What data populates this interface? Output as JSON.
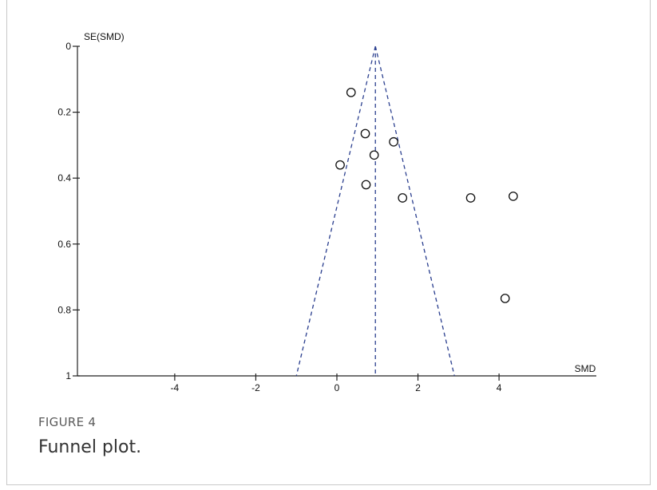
{
  "figure": {
    "label": "FIGURE 4",
    "caption": "Funnel plot."
  },
  "chart_data": {
    "type": "scatter",
    "subtype": "funnel",
    "xlabel": "SMD",
    "ylabel": "SE(SMD)",
    "xlim": [
      -6.4,
      6.4
    ],
    "ylim": [
      0,
      1
    ],
    "y_inverted": true,
    "x_ticks": [
      -4,
      -2,
      0,
      2,
      4
    ],
    "y_ticks": [
      0,
      0.2,
      0.4,
      0.6,
      0.8,
      1
    ],
    "y_tick_labels": [
      "0",
      "0.2",
      "0.4",
      "0.6",
      "0.8",
      "1"
    ],
    "x_tick_labels": [
      "-4",
      "-2",
      "0",
      "2",
      "4"
    ],
    "pooled_estimate": 0.95,
    "funnel": {
      "apex": [
        0.95,
        0
      ],
      "base_left": [
        -1.0,
        1
      ],
      "base_right": [
        2.9,
        1
      ]
    },
    "grid": false,
    "marker": "open-circle",
    "line_color": "#2b3f8f",
    "point_color": "#111111",
    "points": [
      {
        "x": 0.35,
        "y": 0.14
      },
      {
        "x": 0.7,
        "y": 0.265
      },
      {
        "x": 1.4,
        "y": 0.29
      },
      {
        "x": 0.92,
        "y": 0.33
      },
      {
        "x": 0.08,
        "y": 0.36
      },
      {
        "x": 0.72,
        "y": 0.42
      },
      {
        "x": 1.62,
        "y": 0.46
      },
      {
        "x": 3.3,
        "y": 0.46
      },
      {
        "x": 4.35,
        "y": 0.455
      },
      {
        "x": 4.15,
        "y": 0.765
      }
    ]
  }
}
